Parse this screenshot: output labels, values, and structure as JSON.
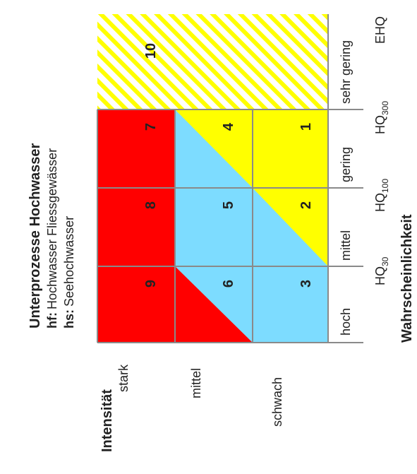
{
  "title": "Unterprozesse Hochwasser",
  "legend": [
    {
      "code": "hf:",
      "text": "Hochwasser Fliessgewässer"
    },
    {
      "code": "hs:",
      "text": "Seehochwasser"
    }
  ],
  "intensity_axis": {
    "label": "Intensität",
    "levels": [
      "stark",
      "mittel",
      "schwach"
    ]
  },
  "probability_axis": {
    "label": "Wahrscheinlichkeit",
    "categories": [
      "hoch",
      "mittel",
      "gering",
      "sehr gering"
    ],
    "thresholds": [
      {
        "main": "HQ",
        "sub": "30"
      },
      {
        "main": "HQ",
        "sub": "100"
      },
      {
        "main": "HQ",
        "sub": "300"
      },
      {
        "main": "EHQ",
        "sub": ""
      }
    ]
  },
  "cells": {
    "c1": "1",
    "c2": "2",
    "c3": "3",
    "c4": "4",
    "c5": "5",
    "c6": "6",
    "c7": "7",
    "c8": "8",
    "c9": "9",
    "c10": "10"
  },
  "colors": {
    "red": "#ff0000",
    "blue": "#7ddcff",
    "yellow": "#ffff00",
    "grid": "#8a8a8a",
    "hatch": "#ffff00"
  }
}
